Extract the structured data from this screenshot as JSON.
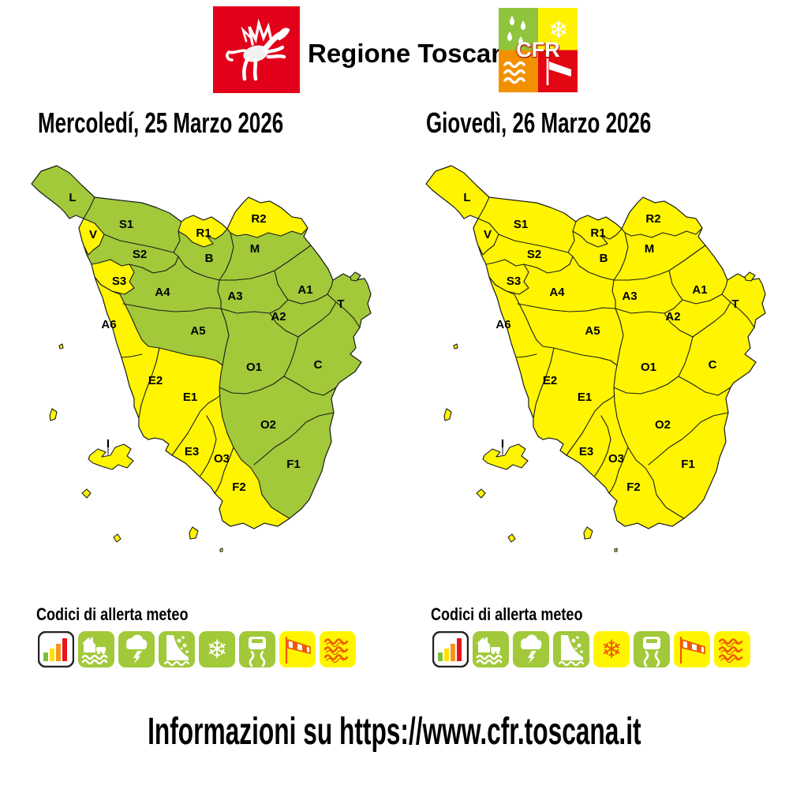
{
  "header": {
    "brand": "Regione Toscana",
    "cfr": "CFR",
    "toscana_logo_color": "#E2001A",
    "cfr_quadrant_colors": {
      "rain": "#8FC43C",
      "snow": "#FFF200",
      "sea": "#F29100",
      "wind": "#E30613"
    }
  },
  "alert_colors": {
    "green": "#A1C93A",
    "yellow": "#FFF500"
  },
  "maps": [
    {
      "id": "m1",
      "title": "Mercoledí, 25 Marzo 2026",
      "base_status": "green",
      "zones": [
        {
          "code": "L",
          "status": "green"
        },
        {
          "code": "S1",
          "status": "green"
        },
        {
          "code": "V",
          "status": "yellow"
        },
        {
          "code": "S2",
          "status": "green"
        },
        {
          "code": "S3",
          "status": "yellow"
        },
        {
          "code": "R1",
          "status": "yellow"
        },
        {
          "code": "R2",
          "status": "yellow"
        },
        {
          "code": "B",
          "status": "green"
        },
        {
          "code": "M",
          "status": "green"
        },
        {
          "code": "A1",
          "status": "green"
        },
        {
          "code": "A2",
          "status": "green"
        },
        {
          "code": "A3",
          "status": "green"
        },
        {
          "code": "A4",
          "status": "green"
        },
        {
          "code": "A5",
          "status": "green"
        },
        {
          "code": "A6",
          "status": "yellow"
        },
        {
          "code": "T",
          "status": "green"
        },
        {
          "code": "C",
          "status": "green"
        },
        {
          "code": "O1",
          "status": "green"
        },
        {
          "code": "O2",
          "status": "green"
        },
        {
          "code": "O3",
          "status": "yellow"
        },
        {
          "code": "E1",
          "status": "yellow"
        },
        {
          "code": "E2",
          "status": "yellow"
        },
        {
          "code": "E3",
          "status": "yellow"
        },
        {
          "code": "F1",
          "status": "green"
        },
        {
          "code": "F2",
          "status": "yellow"
        },
        {
          "code": "I",
          "status": "yellow"
        }
      ]
    },
    {
      "id": "m2",
      "title": "Giovedì, 26 Marzo 2026",
      "base_status": "yellow",
      "zones": [
        {
          "code": "L",
          "status": "yellow"
        },
        {
          "code": "S1",
          "status": "yellow"
        },
        {
          "code": "V",
          "status": "yellow"
        },
        {
          "code": "S2",
          "status": "yellow"
        },
        {
          "code": "S3",
          "status": "yellow"
        },
        {
          "code": "R1",
          "status": "yellow"
        },
        {
          "code": "R2",
          "status": "yellow"
        },
        {
          "code": "B",
          "status": "yellow"
        },
        {
          "code": "M",
          "status": "yellow"
        },
        {
          "code": "A1",
          "status": "yellow"
        },
        {
          "code": "A2",
          "status": "yellow"
        },
        {
          "code": "A3",
          "status": "yellow"
        },
        {
          "code": "A4",
          "status": "yellow"
        },
        {
          "code": "A5",
          "status": "yellow"
        },
        {
          "code": "A6",
          "status": "yellow"
        },
        {
          "code": "T",
          "status": "yellow"
        },
        {
          "code": "C",
          "status": "yellow"
        },
        {
          "code": "O1",
          "status": "yellow"
        },
        {
          "code": "O2",
          "status": "yellow"
        },
        {
          "code": "O3",
          "status": "yellow"
        },
        {
          "code": "E1",
          "status": "yellow"
        },
        {
          "code": "E2",
          "status": "yellow"
        },
        {
          "code": "E3",
          "status": "yellow"
        },
        {
          "code": "F1",
          "status": "yellow"
        },
        {
          "code": "F2",
          "status": "yellow"
        },
        {
          "code": "I",
          "status": "yellow"
        }
      ]
    }
  ],
  "legend": {
    "title": "Codici di allerta meteo",
    "items": [
      {
        "name": "alert-levels-icon",
        "m1": "white",
        "m2": "white"
      },
      {
        "name": "flood-icon",
        "m1": "green",
        "m2": "green"
      },
      {
        "name": "thunderstorm-icon",
        "m1": "green",
        "m2": "green"
      },
      {
        "name": "landslide-icon",
        "m1": "green",
        "m2": "green"
      },
      {
        "name": "snow-icon",
        "m1": "green",
        "m2": "yellow"
      },
      {
        "name": "icy-road-icon",
        "m1": "green",
        "m2": "green"
      },
      {
        "name": "wind-icon",
        "m1": "yellow",
        "m2": "yellow"
      },
      {
        "name": "rough-sea-icon",
        "m1": "yellow",
        "m2": "yellow"
      }
    ],
    "level_bar_colors": [
      "#7AC143",
      "#FFE000",
      "#F7941D",
      "#E8131B"
    ]
  },
  "footer": {
    "text": "Informazioni su https://www.cfr.toscana.it"
  }
}
